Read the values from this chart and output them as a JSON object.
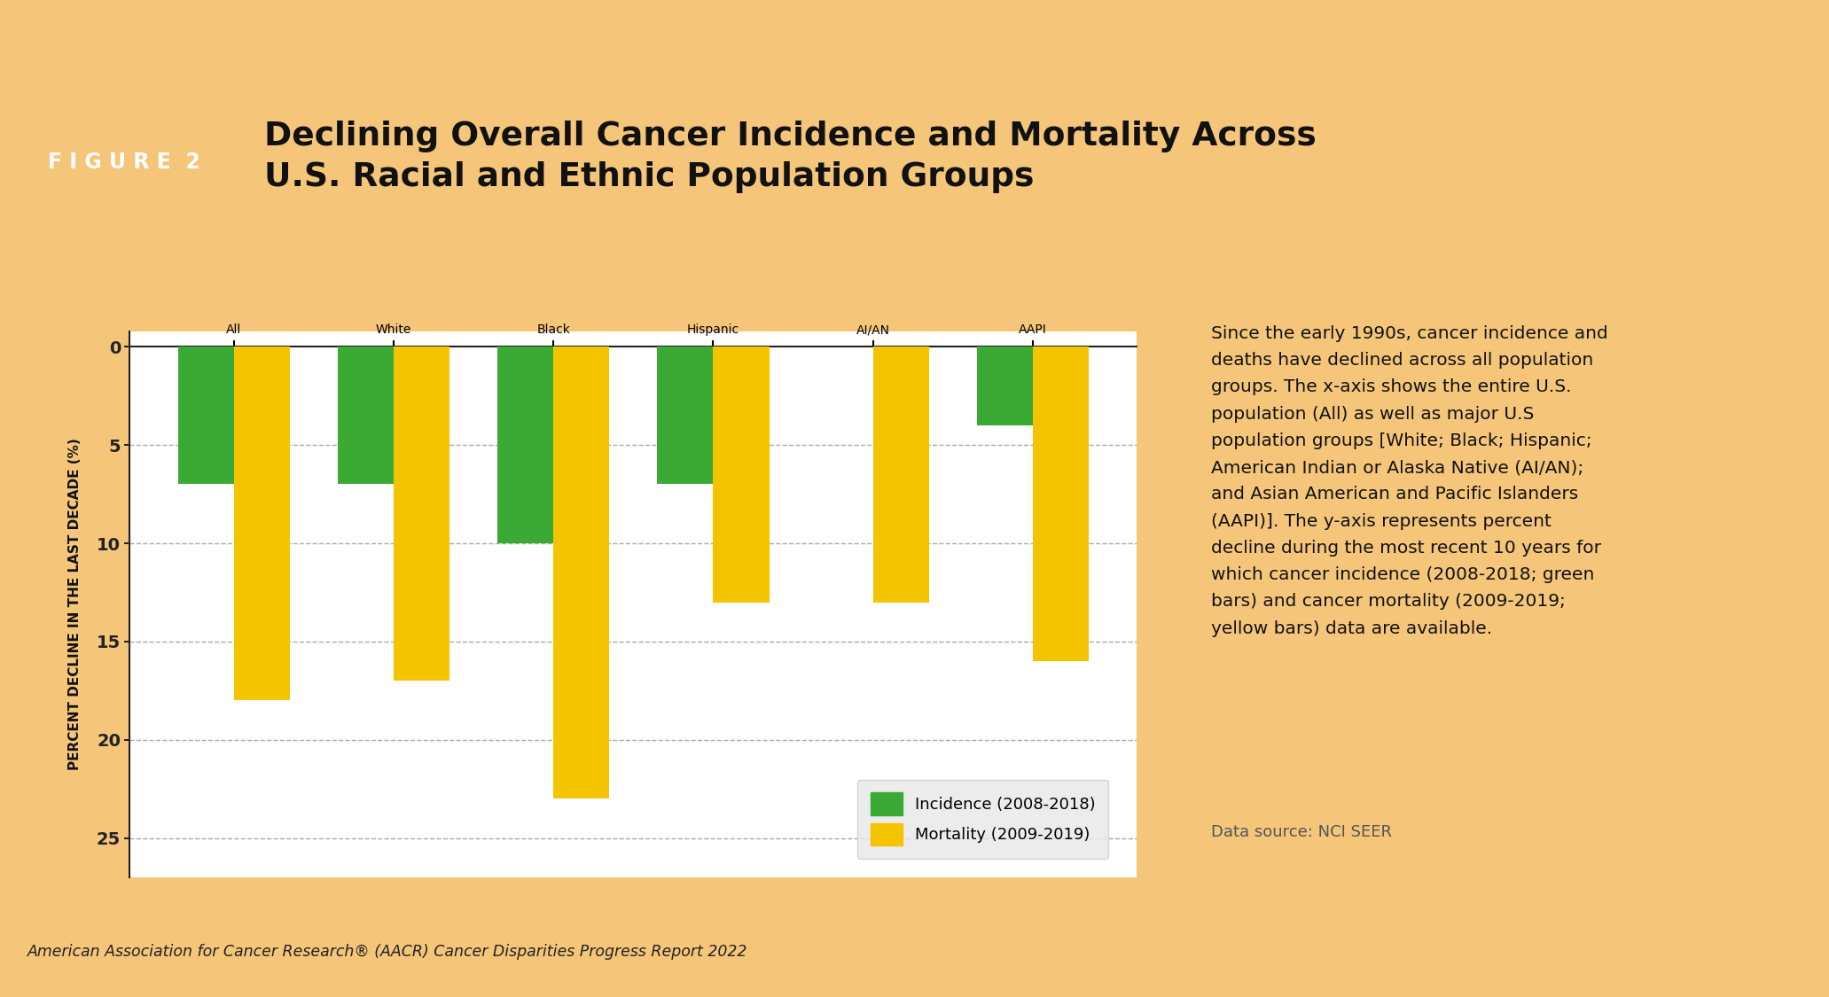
{
  "categories": [
    "All",
    "White",
    "Black",
    "Hispanic",
    "AI/AN",
    "AAPI"
  ],
  "incidence": [
    -7.0,
    -7.0,
    -10.0,
    -7.0,
    0.0,
    -4.0
  ],
  "mortality": [
    -18.0,
    -17.0,
    -23.0,
    -13.0,
    -13.0,
    -16.0
  ],
  "incidence_color": "#3aaa35",
  "mortality_color": "#f5c400",
  "bar_width": 0.35,
  "yticks": [
    0,
    5,
    10,
    15,
    20,
    25
  ],
  "title_line1": "Declining Overall Cancer Incidence and Mortality Across",
  "title_line2": "U.S. Racial and Ethnic Population Groups",
  "figure_label": "F I G U R E  2",
  "ylabel": "PERCENT DECLINE IN THE LAST DECADE (%)",
  "legend_incidence": "Incidence (2008-2018)",
  "legend_mortality": "Mortality (2009-2019)",
  "side_text": "Since the early 1990s, cancer incidence and\ndeaths have declined across all population\ngroups. The x-axis shows the entire U.S.\npopulation (All) as well as major U.S\npopulation groups [White; Black; Hispanic;\nAmerican Indian or Alaska Native (AI/AN);\nand Asian American and Pacific Islanders\n(AAPI)]. The y-axis represents percent\ndecline during the most recent 10 years for\nwhich cancer incidence (2008-2018; green\nbars) and cancer mortality (2009-2019;\nyellow bars) data are available.",
  "data_source": "Data source: NCI SEER",
  "footer": "American Association for Cancer Research® (AACR) Cancer Disparities Progress Report 2022",
  "outer_bg": "#f5c57a",
  "title_bg": "#ffffff",
  "chart_bg": "#ffffff",
  "side_bg": "#fdf0e0",
  "border_color": "#e8a020",
  "figure_label_bg": "#e8a020"
}
